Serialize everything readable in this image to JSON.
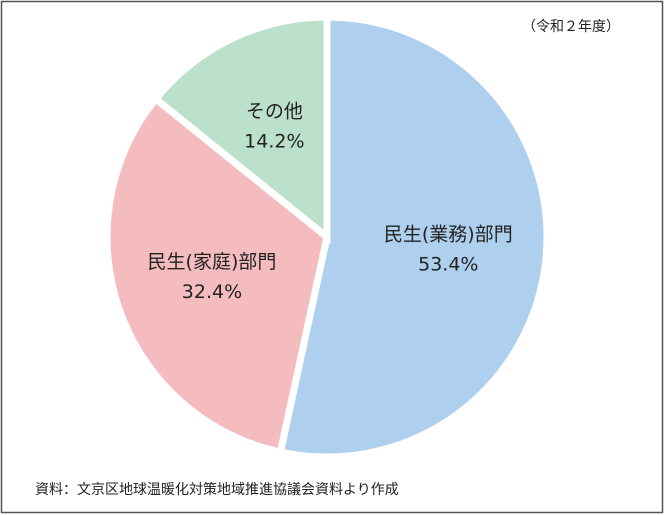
{
  "chart_data": {
    "type": "pie",
    "subtitle": "（令和２年度）",
    "categories": [
      "民生(業務)部門",
      "民生(家庭)部門",
      "その他"
    ],
    "values": [
      53.4,
      32.4,
      14.2
    ],
    "value_labels": [
      "53.4%",
      "32.4%",
      "14.2%"
    ],
    "colors": [
      "#afcfee",
      "#f5bcc0",
      "#bbe0cc"
    ],
    "note": "資料：文京区地球温暖化対策地域推進協議会資料より作成"
  }
}
